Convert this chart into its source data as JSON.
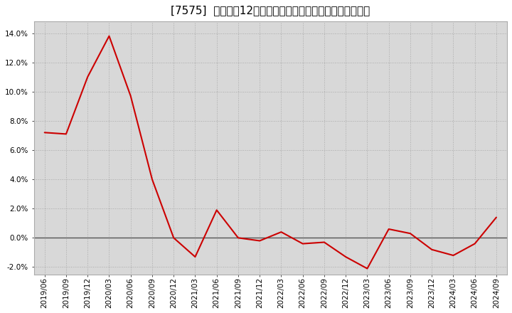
{
  "title": "[7575]  売上高の12か月移動合計の対前年同期増減率の推移",
  "dates": [
    "2019/06",
    "2019/09",
    "2019/12",
    "2020/03",
    "2020/06",
    "2020/09",
    "2020/12",
    "2021/03",
    "2021/06",
    "2021/09",
    "2021/12",
    "2022/03",
    "2022/06",
    "2022/09",
    "2022/12",
    "2023/03",
    "2023/06",
    "2023/09",
    "2023/12",
    "2024/03",
    "2024/06",
    "2024/09"
  ],
  "values": [
    0.072,
    0.071,
    0.11,
    0.138,
    0.097,
    0.04,
    0.0,
    -0.013,
    0.019,
    0.0,
    -0.002,
    0.004,
    -0.004,
    -0.003,
    -0.013,
    -0.021,
    0.006,
    0.003,
    -0.008,
    -0.012,
    -0.004,
    0.014
  ],
  "line_color": "#cc0000",
  "background_color": "#ffffff",
  "plot_bg_color": "#d8d8d8",
  "zero_line_color": "#555555",
  "ylim": [
    -0.025,
    0.148
  ],
  "yticks": [
    -0.02,
    0.0,
    0.02,
    0.04,
    0.06,
    0.08,
    0.1,
    0.12,
    0.14
  ],
  "title_fontsize": 11,
  "tick_fontsize": 7.5
}
